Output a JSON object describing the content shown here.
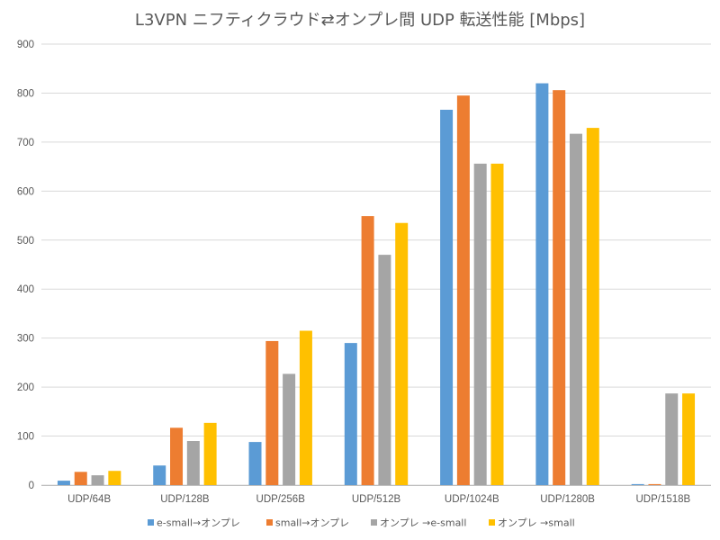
{
  "chart_data": {
    "type": "bar",
    "title": "L3VPN ニフティクラウド⇄オンプレ間 UDP 転送性能 [Mbps]",
    "xlabel": "",
    "ylabel": "",
    "ylim": [
      0,
      900
    ],
    "yticks": [
      0,
      100,
      200,
      300,
      400,
      500,
      600,
      700,
      800,
      900
    ],
    "ytick_labels": [
      "0",
      "100",
      "200",
      "300",
      "400",
      "500",
      "600",
      "700",
      "800",
      "900"
    ],
    "grid": true,
    "legend_position": "bottom",
    "categories": [
      "UDP/64B",
      "UDP/128B",
      "UDP/256B",
      "UDP/512B",
      "UDP/1024B",
      "UDP/1280B",
      "UDP/1518B"
    ],
    "series": [
      {
        "name": "e-small→オンプレ",
        "color": "#5B9BD5",
        "values": [
          9,
          40,
          88,
          290,
          766,
          820,
          2
        ]
      },
      {
        "name": "small→オンプレ",
        "color": "#ED7D31",
        "values": [
          27,
          117,
          294,
          549,
          795,
          806,
          2
        ]
      },
      {
        "name": "オンプレ →e-small",
        "color": "#A5A5A5",
        "values": [
          20,
          90,
          227,
          470,
          656,
          717,
          187
        ]
      },
      {
        "name": "オンプレ →small",
        "color": "#FFC000",
        "values": [
          29,
          127,
          315,
          535,
          656,
          729,
          187
        ]
      }
    ]
  }
}
